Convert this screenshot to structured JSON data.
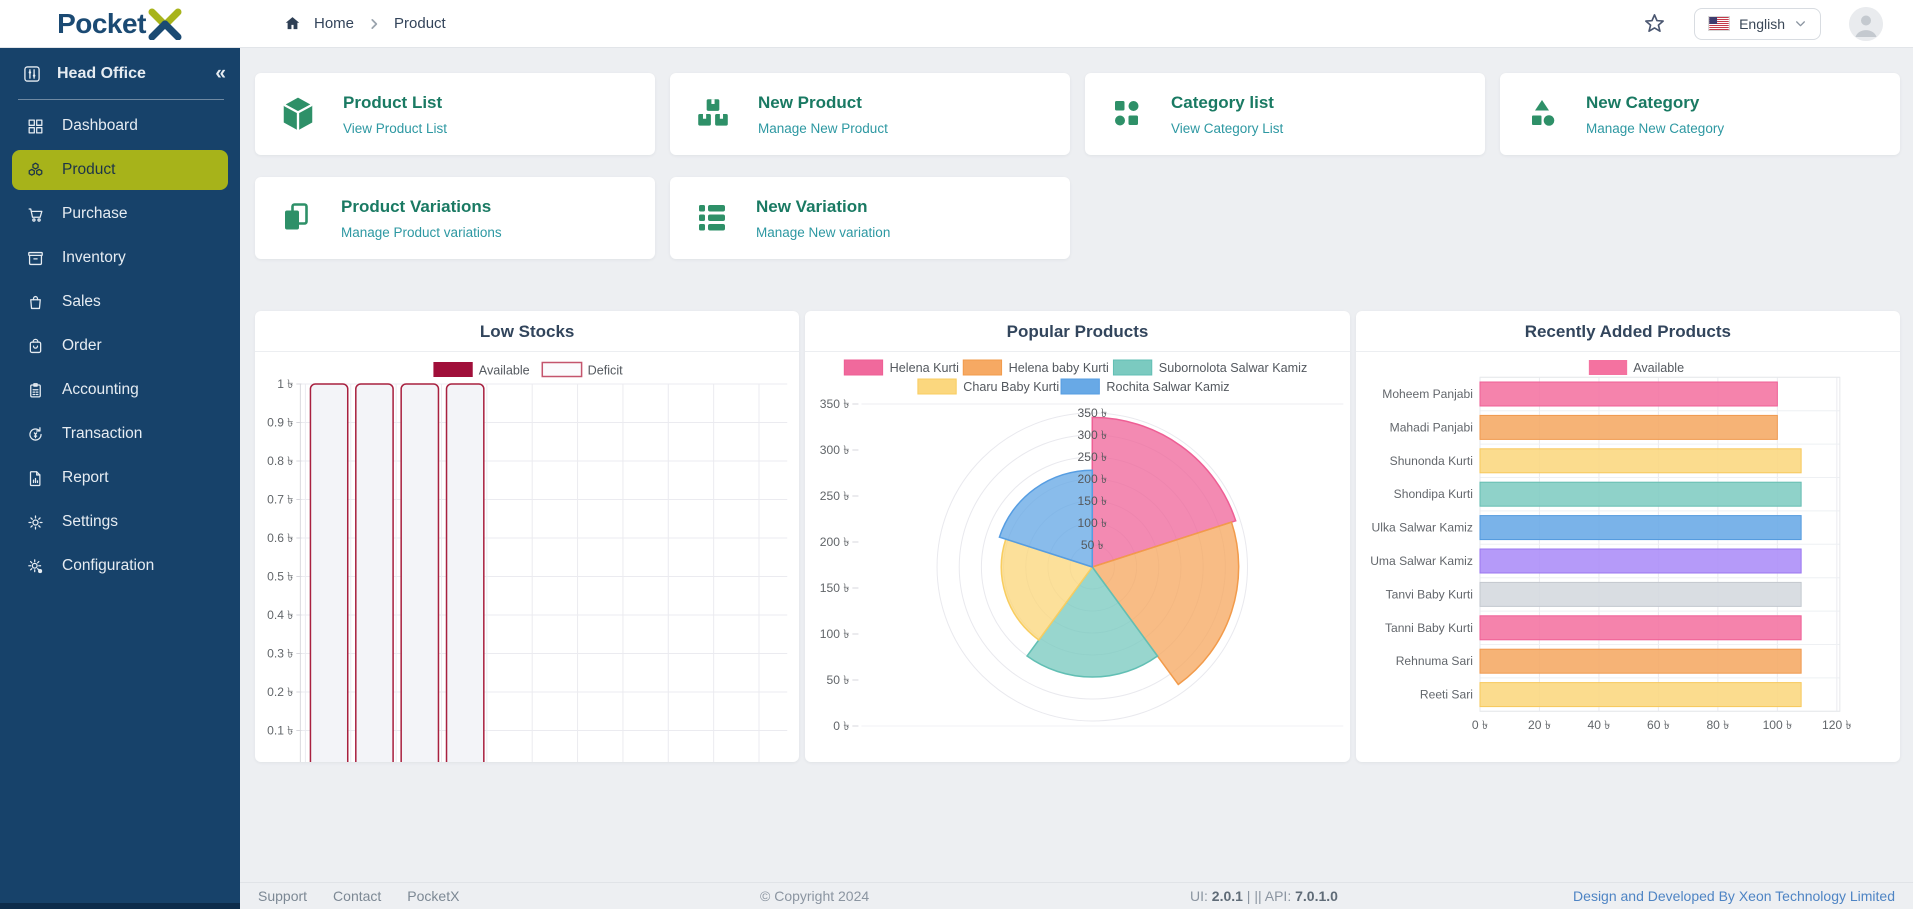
{
  "header": {
    "logo": {
      "text": "Pocket",
      "x": "X"
    },
    "breadcrumb": {
      "home": "Home",
      "current": "Product"
    },
    "language": {
      "label": "English"
    }
  },
  "sidebar": {
    "office_label": "Head Office",
    "collapse_icon": "«",
    "items": [
      {
        "label": "Dashboard",
        "icon": "dashboard-icon",
        "active": false
      },
      {
        "label": "Product",
        "icon": "cubes-icon",
        "active": true
      },
      {
        "label": "Purchase",
        "icon": "cart-icon",
        "active": false
      },
      {
        "label": "Inventory",
        "icon": "inventory-box-icon",
        "active": false
      },
      {
        "label": "Sales",
        "icon": "sales-bag-icon",
        "active": false
      },
      {
        "label": "Order",
        "icon": "order-bag-icon",
        "active": false
      },
      {
        "label": "Accounting",
        "icon": "clipboard-icon",
        "active": false
      },
      {
        "label": "Transaction",
        "icon": "exchange-icon",
        "active": false
      },
      {
        "label": "Report",
        "icon": "report-file-icon",
        "active": false
      },
      {
        "label": "Settings",
        "icon": "gear-icon",
        "active": false
      },
      {
        "label": "Configuration",
        "icon": "config-gear-icon",
        "active": false
      }
    ]
  },
  "cards": [
    {
      "title": "Product List",
      "subtitle": "View Product List",
      "icon": "cube-icon"
    },
    {
      "title": "New Product",
      "subtitle": "Manage New Product",
      "icon": "boxes-icon"
    },
    {
      "title": "Category list",
      "subtitle": "View Category List",
      "icon": "category-icon"
    },
    {
      "title": "New Category",
      "subtitle": "Manage New Category",
      "icon": "shapes-icon"
    },
    {
      "title": "Product Variations",
      "subtitle": "Manage Product variations",
      "icon": "copy-icon"
    },
    {
      "title": "New Variation",
      "subtitle": "Manage New variation",
      "icon": "list-table-icon"
    }
  ],
  "chart_data": [
    {
      "type": "bar",
      "title": "Low Stocks",
      "currency_suffix": " ৳",
      "legend": [
        {
          "label": "Available",
          "color": "#a00f3a",
          "style": "filled"
        },
        {
          "label": "Deficit",
          "color": "#c4556d",
          "style": "outline"
        }
      ],
      "ylim": [
        0,
        1
      ],
      "y_tick_step": 0.1,
      "categories": [
        "",
        "",
        "",
        ""
      ],
      "series": [
        {
          "name": "Deficit",
          "values": [
            1,
            1,
            1,
            1
          ]
        }
      ],
      "bar_style": {
        "fill": "#f3f4f8",
        "stroke": "#a8203f"
      },
      "note": "x-axis labels clipped at card bottom"
    },
    {
      "type": "polarArea",
      "title": "Popular Products",
      "currency_suffix": " ৳",
      "rlim": [
        0,
        350
      ],
      "r_tick_step": 50,
      "series": [
        {
          "name": "Helena Kurti",
          "value": 340,
          "color": "#f0699c",
          "border": "#ee5f95"
        },
        {
          "name": "Helena baby Kurti",
          "value": 330,
          "color": "#f6a963",
          "border": "#f29b4b"
        },
        {
          "name": "Subornolota Salwar Kamiz",
          "value": 250,
          "color": "#7bcac0",
          "border": "#62bfb4"
        },
        {
          "name": "Charu Baby Kurti",
          "value": 205,
          "color": "#fbd77e",
          "border": "#f8cd60"
        },
        {
          "name": "Rochita Salwar Kamiz",
          "value": 220,
          "color": "#68a9e6",
          "border": "#569de2"
        }
      ]
    },
    {
      "type": "horizontal-bar",
      "title": "Recently Added Products",
      "currency_suffix": " ৳",
      "legend": [
        {
          "label": "Available",
          "color": "#f472a0",
          "style": "filled"
        }
      ],
      "xlim": [
        0,
        120
      ],
      "x_tick_step": 20,
      "categories": [
        "Moheem Panjabi",
        "Mahadi Panjabi",
        "Shunonda Kurti",
        "Shondipa Kurti",
        "Ulka Salwar Kamiz",
        "Uma Salwar Kamiz",
        "Tanvi Baby Kurti",
        "Tanni Baby Kurti",
        "Rehnuma Sari",
        "Reeti Sari"
      ],
      "values": [
        100,
        100,
        108,
        108,
        108,
        108,
        108,
        108,
        108,
        108
      ],
      "colors": [
        "#f472a0",
        "#f5a863",
        "#fbd77e",
        "#7fccc2",
        "#68a9e6",
        "#ab8cf8",
        "#d4d8de",
        "#f472a0",
        "#f5a863",
        "#fbd77e"
      ],
      "borders": [
        "#ef5f96",
        "#f09a4f",
        "#f7c95c",
        "#66bdb2",
        "#539ade",
        "#9a76f0",
        "#c3c8cf",
        "#ef5f96",
        "#f09a4f",
        "#f7c95c"
      ]
    }
  ],
  "footer": {
    "links": [
      "Support",
      "Contact",
      "PocketX"
    ],
    "copyright": "© Copyright 2024",
    "ui_label": "UI:",
    "ui_version": "2.0.1",
    "separator": "||",
    "api_label": "API:",
    "api_version": "7.0.1.0",
    "credit": "Design and Developed By Xeon Technology Limited"
  }
}
